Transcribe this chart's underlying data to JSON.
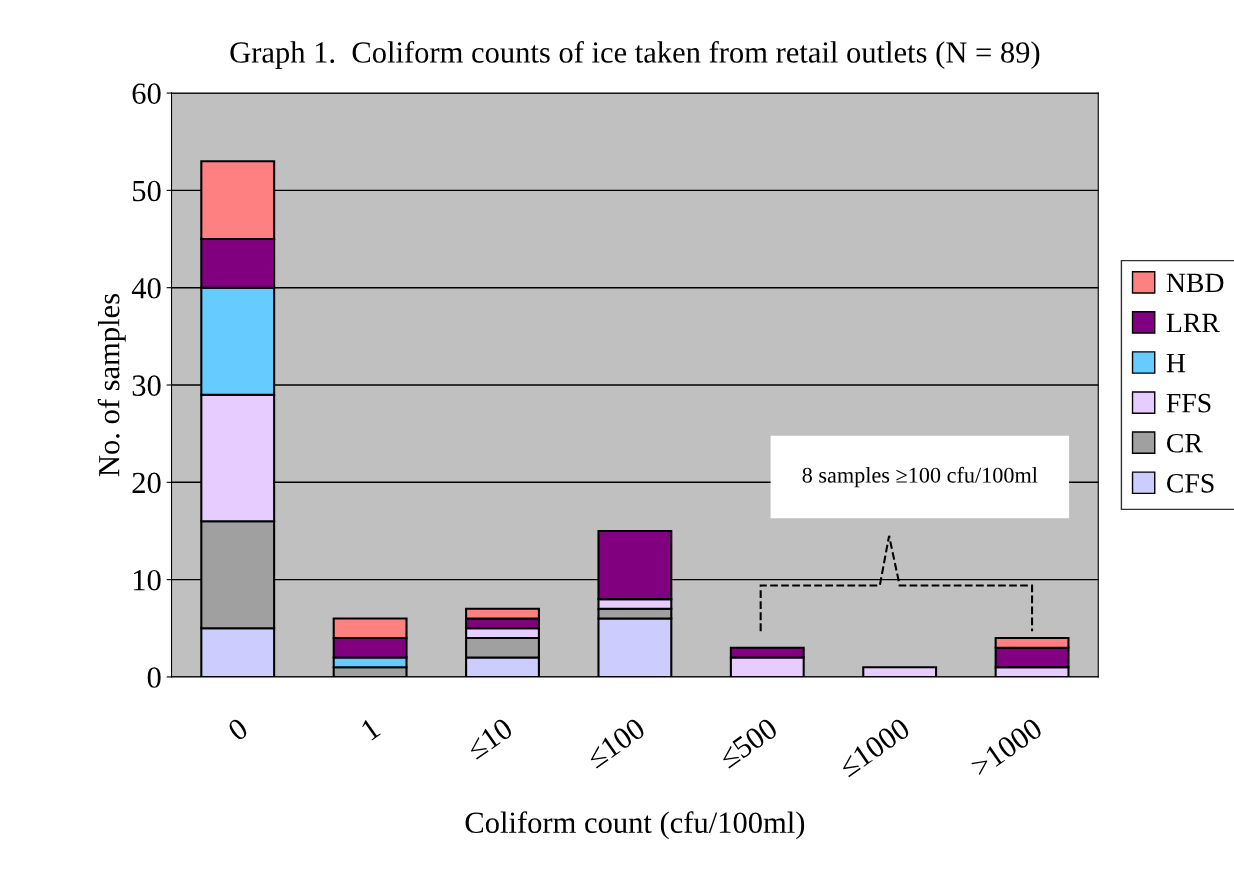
{
  "chart_data": {
    "type": "bar",
    "stacked": true,
    "title": "Graph 1.  Coliform counts of ice taken from retail outlets (N = 89)",
    "xlabel": "Coliform count (cfu/100ml)",
    "ylabel": "No. of samples",
    "categories": [
      "0",
      "1",
      "≤10",
      "≤100",
      "≤500",
      "≤1000",
      ">1000"
    ],
    "series": [
      {
        "name": "CFS",
        "color": "#ccccff",
        "values": [
          5,
          0,
          2,
          6,
          0,
          0,
          0
        ]
      },
      {
        "name": "CR",
        "color": "#a0a0a0",
        "values": [
          11,
          1,
          2,
          1,
          0,
          0,
          0
        ]
      },
      {
        "name": "FFS",
        "color": "#e6ccff",
        "values": [
          13,
          0,
          1,
          1,
          2,
          1,
          1
        ]
      },
      {
        "name": "H",
        "color": "#66ccff",
        "values": [
          11,
          1,
          0,
          0,
          0,
          0,
          0
        ]
      },
      {
        "name": "LRR",
        "color": "#800080",
        "values": [
          5,
          2,
          1,
          7,
          1,
          0,
          2
        ]
      },
      {
        "name": "NBD",
        "color": "#ff8080",
        "values": [
          8,
          2,
          1,
          0,
          0,
          0,
          1
        ]
      }
    ],
    "ylim": [
      0,
      60
    ],
    "yticks": [
      0,
      10,
      20,
      30,
      40,
      50,
      60
    ],
    "grid": "y",
    "legend": "right",
    "annotations": [
      "8 samples ≥100 cfu/100ml"
    ]
  }
}
